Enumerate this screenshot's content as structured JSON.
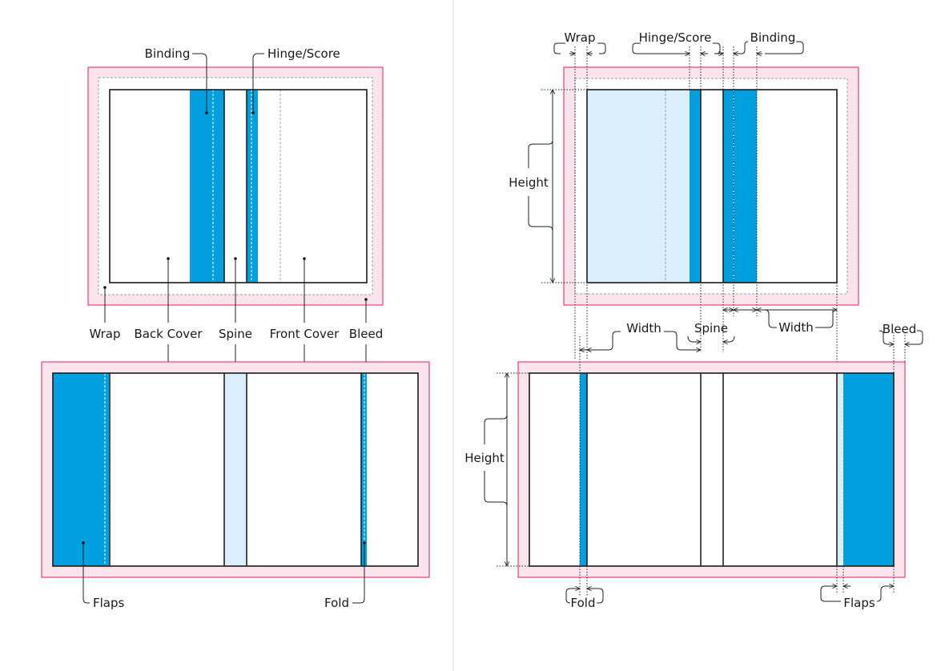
{
  "left": {
    "labels": {
      "binding": "Binding",
      "hinge_score": "Hinge/Score",
      "wrap": "Wrap",
      "back_cover": "Back Cover",
      "spine": "Spine",
      "front_cover": "Front Cover",
      "bleed": "Bleed",
      "flaps": "Flaps",
      "fold": "Fold"
    }
  },
  "right": {
    "labels": {
      "wrap": "Wrap",
      "hinge_score": "Hinge/Score",
      "binding": "Binding",
      "height_top": "Height",
      "width_left": "Width",
      "spine": "Spine",
      "width_right": "Width",
      "bleed": "Bleed",
      "height_bottom": "Height",
      "fold": "Fold",
      "flaps": "Flaps"
    }
  },
  "colors": {
    "bleed_fill": "#fce4ec",
    "bleed_stroke": "#e91e63",
    "highlight": "#009fe0",
    "highlight_light": "#dbeefb"
  }
}
